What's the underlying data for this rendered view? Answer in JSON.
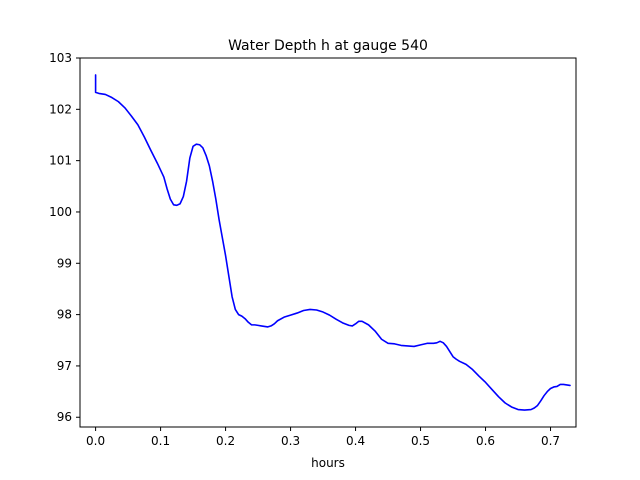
{
  "chart_data": {
    "type": "line",
    "title": "Water Depth h at gauge 540",
    "xlabel": "hours",
    "ylabel": "",
    "xlim": [
      -0.024,
      0.7392
    ],
    "ylim": [
      95.81,
      103.0
    ],
    "xticks": [
      0.0,
      0.1,
      0.2,
      0.3,
      0.4,
      0.5,
      0.6,
      0.7
    ],
    "xtick_labels": [
      "0.0",
      "0.1",
      "0.2",
      "0.3",
      "0.4",
      "0.5",
      "0.6",
      "0.7"
    ],
    "yticks": [
      96,
      97,
      98,
      99,
      100,
      101,
      102,
      103
    ],
    "ytick_labels": [
      "96",
      "97",
      "98",
      "99",
      "100",
      "101",
      "102",
      "103"
    ],
    "grid": false,
    "legend": "none",
    "series": [
      {
        "color": "#0000ff",
        "x": [
          0.0,
          0.0,
          0.005,
          0.015,
          0.025,
          0.035,
          0.045,
          0.055,
          0.065,
          0.075,
          0.085,
          0.095,
          0.105,
          0.11,
          0.115,
          0.12,
          0.125,
          0.13,
          0.135,
          0.14,
          0.145,
          0.15,
          0.155,
          0.16,
          0.165,
          0.17,
          0.175,
          0.18,
          0.185,
          0.19,
          0.195,
          0.2,
          0.205,
          0.21,
          0.215,
          0.22,
          0.225,
          0.23,
          0.235,
          0.24,
          0.245,
          0.25,
          0.255,
          0.26,
          0.265,
          0.27,
          0.275,
          0.28,
          0.29,
          0.3,
          0.31,
          0.32,
          0.33,
          0.34,
          0.35,
          0.36,
          0.37,
          0.38,
          0.39,
          0.395,
          0.4,
          0.405,
          0.41,
          0.42,
          0.43,
          0.44,
          0.45,
          0.46,
          0.47,
          0.48,
          0.49,
          0.5,
          0.51,
          0.52,
          0.525,
          0.53,
          0.535,
          0.54,
          0.545,
          0.55,
          0.555,
          0.56,
          0.57,
          0.58,
          0.59,
          0.6,
          0.61,
          0.62,
          0.63,
          0.64,
          0.65,
          0.66,
          0.67,
          0.675,
          0.68,
          0.685,
          0.69,
          0.695,
          0.7,
          0.705,
          0.71,
          0.715,
          0.72,
          0.725,
          0.73
        ],
        "y": [
          102.67,
          102.33,
          102.31,
          102.29,
          102.23,
          102.15,
          102.03,
          101.87,
          101.7,
          101.46,
          101.2,
          100.95,
          100.68,
          100.45,
          100.25,
          100.14,
          100.13,
          100.16,
          100.3,
          100.6,
          101.05,
          101.28,
          101.32,
          101.31,
          101.25,
          101.1,
          100.9,
          100.6,
          100.25,
          99.85,
          99.5,
          99.15,
          98.75,
          98.35,
          98.1,
          98.0,
          97.97,
          97.92,
          97.85,
          97.8,
          97.8,
          97.79,
          97.78,
          97.77,
          97.76,
          97.78,
          97.82,
          97.88,
          97.95,
          97.99,
          98.03,
          98.08,
          98.1,
          98.09,
          98.05,
          97.99,
          97.91,
          97.84,
          97.79,
          97.78,
          97.82,
          97.87,
          97.87,
          97.8,
          97.68,
          97.52,
          97.44,
          97.43,
          97.4,
          97.39,
          97.38,
          97.41,
          97.44,
          97.44,
          97.45,
          97.48,
          97.45,
          97.38,
          97.28,
          97.18,
          97.13,
          97.09,
          97.03,
          96.93,
          96.8,
          96.68,
          96.54,
          96.4,
          96.28,
          96.2,
          96.15,
          96.14,
          96.15,
          96.18,
          96.23,
          96.32,
          96.42,
          96.5,
          96.56,
          96.59,
          96.6,
          96.64,
          96.64,
          96.63,
          96.62
        ]
      }
    ]
  }
}
